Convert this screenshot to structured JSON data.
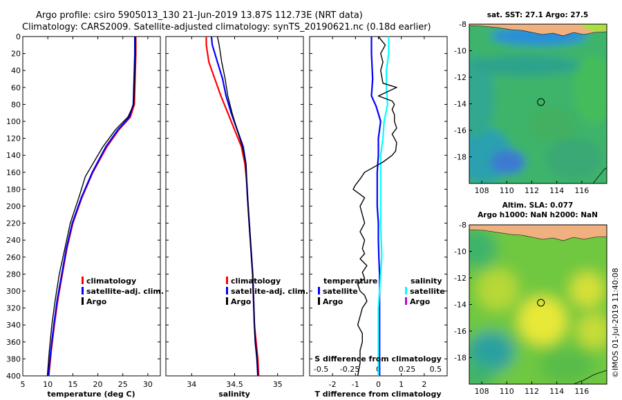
{
  "title_line1": "Argo profile: csiro 5905013_130 21-Jun-2019 13.87S 112.73E (NRT data)",
  "title_line2": "Climatology: CARS2009. Satellite-adjusted climatology: synTS_20190621.nc (0.18d earlier)",
  "credit": "©IMOS 01-Jul-2019 11:40:08",
  "colors": {
    "climatology": "#ff0000",
    "satellite": "#0000ff",
    "argo": "#000000",
    "sal_satellite": "#00ffff",
    "sal_argo": "#cc00cc"
  },
  "chart_data": [
    {
      "type": "line",
      "name": "temperature",
      "xlabel": "temperature (deg C)",
      "ylabel": "",
      "xlim": [
        5,
        32.5
      ],
      "ylim": [
        0,
        400
      ],
      "xticks": [
        "5",
        "10",
        "15",
        "20",
        "25",
        "30"
      ],
      "yticks": [
        "0",
        "20",
        "40",
        "60",
        "80",
        "100",
        "120",
        "140",
        "160",
        "180",
        "200",
        "220",
        "240",
        "260",
        "280",
        "300",
        "320",
        "340",
        "360",
        "380",
        "400"
      ],
      "legend": [
        "climatology",
        "satellite-adj. clim.",
        "Argo"
      ],
      "series": [
        {
          "name": "climatology",
          "x": [
            27.6,
            27.6,
            27.5,
            27.4,
            27.3,
            26.5,
            24.2,
            21.8,
            19.0,
            16.8,
            15.0,
            13.8,
            12.9,
            12.0,
            11.3,
            10.7,
            10.2
          ],
          "y": [
            0,
            20,
            40,
            60,
            80,
            95,
            110,
            130,
            160,
            190,
            220,
            250,
            280,
            310,
            340,
            370,
            400
          ]
        },
        {
          "name": "satellite-adj. clim.",
          "x": [
            27.4,
            27.4,
            27.3,
            27.2,
            27.1,
            26.3,
            24.0,
            21.6,
            18.9,
            16.7,
            14.9,
            13.7,
            12.8,
            11.9,
            11.2,
            10.6,
            10.1
          ],
          "y": [
            0,
            20,
            40,
            60,
            80,
            95,
            110,
            130,
            160,
            190,
            220,
            250,
            280,
            310,
            340,
            370,
            400
          ]
        },
        {
          "name": "Argo",
          "x": [
            27.5,
            27.5,
            27.4,
            27.3,
            27.2,
            26.0,
            23.5,
            21.0,
            18.5,
            17.5,
            16.2,
            14.5,
            13.4,
            12.3,
            11.5,
            10.8,
            10.3,
            9.9
          ],
          "y": [
            0,
            20,
            40,
            60,
            80,
            95,
            110,
            130,
            155,
            165,
            190,
            220,
            250,
            280,
            310,
            340,
            370,
            400
          ]
        }
      ]
    },
    {
      "type": "line",
      "name": "salinity",
      "xlabel": "salinity",
      "ylabel": "",
      "xlim": [
        33.7,
        35.3
      ],
      "ylim": [
        0,
        400
      ],
      "xticks": [
        "34",
        "34.5",
        "35"
      ],
      "legend": [
        "climatology",
        "satellite-adj. clim.",
        "Argo"
      ],
      "series": [
        {
          "name": "climatology",
          "x": [
            34.17,
            34.17,
            34.2,
            34.27,
            34.34,
            34.42,
            34.5,
            34.58,
            34.62,
            34.64,
            34.65,
            34.67,
            34.69,
            34.71,
            34.72,
            34.73,
            34.75,
            34.77,
            34.78
          ],
          "y": [
            0,
            10,
            30,
            50,
            70,
            90,
            110,
            130,
            150,
            170,
            190,
            220,
            250,
            280,
            310,
            340,
            360,
            380,
            400
          ]
        },
        {
          "name": "satellite-adj. clim.",
          "x": [
            34.23,
            34.24,
            34.3,
            34.36,
            34.4,
            34.46,
            34.53,
            34.6,
            34.63,
            34.64,
            34.65,
            34.67,
            34.69,
            34.71,
            34.72,
            34.73,
            34.74,
            34.76,
            34.77
          ],
          "y": [
            0,
            10,
            30,
            50,
            70,
            90,
            110,
            130,
            150,
            170,
            190,
            220,
            250,
            280,
            310,
            340,
            360,
            380,
            400
          ]
        },
        {
          "name": "Argo",
          "x": [
            34.3,
            34.32,
            34.35,
            34.39,
            34.42,
            34.47,
            34.53,
            34.59,
            34.63,
            34.64,
            34.65,
            34.67,
            34.69,
            34.71,
            34.72,
            34.73,
            34.74,
            34.76,
            34.77
          ],
          "y": [
            0,
            10,
            30,
            50,
            70,
            90,
            110,
            130,
            150,
            170,
            190,
            220,
            250,
            280,
            310,
            340,
            360,
            380,
            400
          ]
        }
      ]
    },
    {
      "type": "line",
      "name": "difference",
      "xlabel": "T difference from climatology",
      "xlabel_top": "S difference from climatology",
      "xlim": [
        -3,
        3
      ],
      "ylim": [
        0,
        400
      ],
      "xticks": [
        "-2",
        "-1",
        "0",
        "1",
        "2"
      ],
      "xticks_top": [
        "-0.5",
        "-0.25",
        "0",
        "0.25",
        "0.5"
      ],
      "legend_temperature_heading": "temperature",
      "legend_salinity_heading": "salinity",
      "legend_temperature": [
        "satellite",
        "Argo"
      ],
      "legend_salinity": [
        "satellite",
        "Argo"
      ],
      "series": [
        {
          "name": "T satellite",
          "x": [
            -0.3,
            -0.3,
            -0.25,
            -0.3,
            -0.1,
            0.1,
            0.0,
            0.0,
            -0.05,
            -0.05,
            -0.05,
            0.0,
            0.0,
            0.02,
            0.05,
            0.05,
            0.05,
            0.05,
            0.05
          ],
          "y": [
            0,
            20,
            50,
            70,
            82,
            100,
            120,
            140,
            160,
            180,
            200,
            220,
            240,
            260,
            280,
            300,
            320,
            360,
            400
          ]
        },
        {
          "name": "S satellite",
          "x": [
            0.45,
            0.45,
            0.35,
            0.35,
            0.4,
            0.25,
            0.2,
            0.1,
            0.1,
            0.1,
            0.1,
            0.1,
            0.15,
            0.1,
            0.05,
            0.0,
            0.0,
            0.0,
            0.0
          ],
          "y": [
            0,
            20,
            40,
            60,
            80,
            100,
            120,
            140,
            160,
            180,
            200,
            220,
            260,
            280,
            300,
            320,
            340,
            370,
            400
          ]
        },
        {
          "name": "T Argo",
          "x": [
            0.0,
            0.3,
            0.1,
            0.2,
            0.1,
            0.2,
            0.8,
            0.0,
            0.6,
            0.7,
            0.6,
            0.7,
            0.7,
            0.8,
            0.6,
            0.8,
            0.75,
            0.6,
            0.2,
            -0.6,
            -0.8,
            -1.0,
            -1.1,
            -0.6,
            -0.8,
            -0.7,
            -0.6,
            -0.8,
            -0.6,
            -0.7,
            -0.6,
            -0.8,
            -0.5,
            -0.7,
            -0.6,
            -0.9,
            -0.8,
            -0.6,
            -0.5,
            -0.7,
            -0.8,
            -0.9,
            -0.7,
            -0.7,
            -0.8,
            -0.8,
            -0.9
          ],
          "y": [
            0,
            10,
            20,
            30,
            40,
            55,
            60,
            70,
            76,
            80,
            86,
            92,
            100,
            108,
            115,
            125,
            135,
            140,
            148,
            160,
            168,
            175,
            180,
            190,
            200,
            210,
            220,
            230,
            240,
            250,
            256,
            262,
            270,
            278,
            285,
            292,
            300,
            305,
            312,
            320,
            330,
            340,
            350,
            360,
            370,
            385,
            400
          ]
        }
      ]
    },
    {
      "type": "heatmap",
      "name": "sst-map",
      "title": "sat. SST: 27.1 Argo: 27.5",
      "xticks": [
        "108",
        "110",
        "112",
        "114",
        "116"
      ],
      "yticks": [
        "-8",
        "-10",
        "-12",
        "-14",
        "-16",
        "-18"
      ],
      "xlim": [
        107,
        118
      ],
      "ylim": [
        -20,
        -8
      ],
      "marker": {
        "lon": 112.73,
        "lat": -13.87
      }
    },
    {
      "type": "heatmap",
      "name": "sla-map",
      "title_line1": "Altim. SLA: 0.077",
      "title_line2": "Argo h1000: NaN h2000: NaN",
      "xticks": [
        "108",
        "110",
        "112",
        "114",
        "116"
      ],
      "yticks": [
        "-8",
        "-10",
        "-12",
        "-14",
        "-16",
        "-18"
      ],
      "xlim": [
        107,
        118
      ],
      "ylim": [
        -20,
        -8
      ],
      "marker": {
        "lon": 112.73,
        "lat": -13.87
      }
    }
  ]
}
